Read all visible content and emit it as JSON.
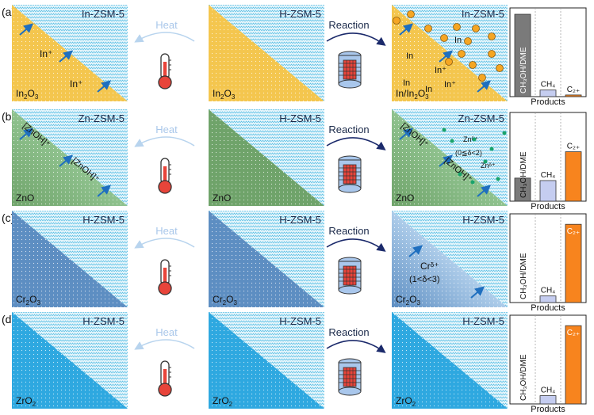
{
  "rows": [
    {
      "label": "(a)",
      "heat": "Heat",
      "reaction": "Reaction",
      "oxide_color": "#f4c64e",
      "panel1": {
        "title": "In-ZSM-5",
        "oxide": "In",
        "oxide_sub": "2",
        "oxide_tail": "O",
        "oxide_sub2": "3",
        "species": [
          "In⁺",
          "In⁺"
        ]
      },
      "panel2": {
        "title": "H-ZSM-5",
        "oxide": "In",
        "oxide_sub": "2",
        "oxide_tail": "O",
        "oxide_sub2": "3"
      },
      "panel3": {
        "title": "In-ZSM-5",
        "oxide": "In/In",
        "oxide_sub": "2",
        "oxide_tail": "O",
        "oxide_sub2": "3",
        "species": [
          "In",
          "In",
          "In⁺",
          "In",
          "In",
          "In⁺"
        ]
      },
      "chart": {
        "type": "bar",
        "categories": [
          "CH3OH/DME",
          "CH4",
          "C2+"
        ],
        "values": [
          100,
          8,
          2
        ],
        "bar_colors": [
          "#7a7a7a",
          "#c5cdf0",
          "#f7841e"
        ],
        "xlabel": "Products",
        "labels": [
          "CH₃OH/DME",
          "CH₄",
          "C₂₊"
        ]
      }
    },
    {
      "label": "(b)",
      "heat": "Heat",
      "reaction": "Reaction",
      "oxide_color": "#6fa36a",
      "panel1": {
        "title": "Zn-ZSM-5",
        "oxide": "ZnO",
        "species": [
          "[ZnOH]⁺",
          "[ZnOH]⁺"
        ]
      },
      "panel2": {
        "title": "H-ZSM-5",
        "oxide": "ZnO"
      },
      "panel3": {
        "title": "Zn-ZSM-5",
        "oxide": "ZnO",
        "species": [
          "[ZnOH]⁺",
          "[ZnOH]⁺",
          "Znᵟ⁺",
          "(0≦δ<2)",
          "Znᵟ⁺"
        ]
      },
      "chart": {
        "type": "bar",
        "categories": [
          "CH3OH/DME",
          "CH4",
          "C2+"
        ],
        "values": [
          28,
          25,
          60
        ],
        "bar_colors": [
          "#7a7a7a",
          "#c5cdf0",
          "#f7841e"
        ],
        "xlabel": "Products",
        "labels": [
          "CH₃OH/DME",
          "CH₄",
          "C₂₊"
        ]
      }
    },
    {
      "label": "(c)",
      "heat": "Heat",
      "reaction": "Reaction",
      "oxide_color": "#5d8ec2",
      "panel1": {
        "title": "H-ZSM-5",
        "oxide": "Cr",
        "oxide_sub": "2",
        "oxide_tail": "O",
        "oxide_sub2": "3"
      },
      "panel2": {
        "title": "H-ZSM-5",
        "oxide": "Cr",
        "oxide_sub": "2",
        "oxide_tail": "O",
        "oxide_sub2": "3"
      },
      "panel3": {
        "title": "H-ZSM-5",
        "oxide": "Cr",
        "oxide_sub": "2",
        "oxide_tail": "O",
        "oxide_sub2": "3",
        "species": [
          "Crᵟ⁺",
          "(1<δ<3)"
        ]
      },
      "chart": {
        "type": "bar",
        "categories": [
          "CH3OH/DME",
          "CH4",
          "C2+"
        ],
        "values": [
          0,
          8,
          95
        ],
        "bar_colors": [
          "#7a7a7a",
          "#c5cdf0",
          "#f7841e"
        ],
        "xlabel": "Products",
        "labels": [
          "CH₃OH/DME",
          "CH₄",
          "C₂₊"
        ]
      }
    },
    {
      "label": "(d)",
      "heat": "Heat",
      "reaction": "Reaction",
      "oxide_color": "#2ea8e0",
      "panel1": {
        "title": "H-ZSM-5",
        "oxide": "ZrO",
        "oxide_sub": "2"
      },
      "panel2": {
        "title": "H-ZSM-5",
        "oxide": "ZrO",
        "oxide_sub": "2"
      },
      "panel3": {
        "title": "H-ZSM-5",
        "oxide": "ZrO",
        "oxide_sub": "2"
      },
      "chart": {
        "type": "bar",
        "categories": [
          "CH3OH/DME",
          "CH4",
          "C2+"
        ],
        "values": [
          0,
          10,
          95
        ],
        "bar_colors": [
          "#7a7a7a",
          "#c5cdf0",
          "#f7841e"
        ],
        "xlabel": "Products",
        "labels": [
          "CH₃OH/DME",
          "CH₄",
          "C₂₊"
        ]
      }
    }
  ],
  "chart_data": [
    {
      "type": "bar",
      "categories": [
        "CH3OH/DME",
        "CH4",
        "C2+"
      ],
      "values": [
        100,
        8,
        2
      ],
      "xlabel": "Products"
    },
    {
      "type": "bar",
      "categories": [
        "CH3OH/DME",
        "CH4",
        "C2+"
      ],
      "values": [
        28,
        25,
        60
      ],
      "xlabel": "Products"
    },
    {
      "type": "bar",
      "categories": [
        "CH3OH/DME",
        "CH4",
        "C2+"
      ],
      "values": [
        0,
        8,
        95
      ],
      "xlabel": "Products"
    },
    {
      "type": "bar",
      "categories": [
        "CH3OH/DME",
        "CH4",
        "C2+"
      ],
      "values": [
        0,
        10,
        95
      ],
      "xlabel": "Products"
    }
  ]
}
